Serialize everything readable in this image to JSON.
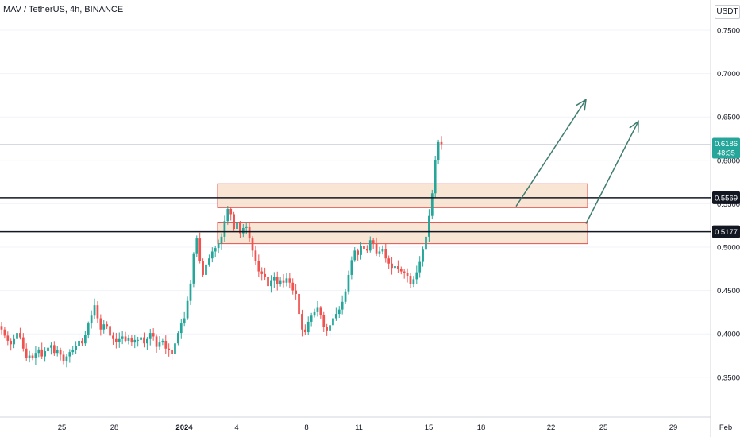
{
  "header": {
    "symbol_line": "MAV / TetherUS, 4h, BINANCE",
    "currency": "USDT"
  },
  "colors": {
    "up": "#26a69a",
    "down": "#ef5350",
    "zone_fill": "#f7dcc6",
    "zone_stroke": "#e0504d",
    "level_line": "#131722",
    "arrow": "#3d7c6f",
    "grid": "#f0f3fa"
  },
  "price_labels": {
    "current": "0.6186",
    "countdown": "48:35",
    "levels": [
      "0.5569",
      "0.5177"
    ]
  },
  "chart_data": {
    "type": "candlestick",
    "title": "MAV / TetherUS, 4h, BINANCE",
    "y_axis": {
      "ticks": [
        "0.7500",
        "0.7000",
        "0.6500",
        "0.6000",
        "0.5500",
        "0.5000",
        "0.4500",
        "0.4000",
        "0.3500"
      ],
      "range": [
        0.3,
        0.77
      ]
    },
    "x_axis": {
      "ticks": [
        "25",
        "28",
        "2024",
        "4",
        "8",
        "11",
        "15",
        "18",
        "22",
        "25",
        "29",
        "Feb"
      ],
      "start_date": "2023-12-22"
    },
    "horizontal_levels": [
      0.5569,
      0.5177
    ],
    "zones": [
      {
        "from_date": "2024-01-03",
        "to_date": "2024-01-24",
        "low": 0.5455,
        "high": 0.573
      },
      {
        "from_date": "2024-01-03",
        "to_date": "2024-01-24",
        "low": 0.504,
        "high": 0.528
      }
    ],
    "arrows": [
      {
        "from_date": "2024-01-20",
        "from_price": 0.547,
        "to_date": "2024-01-24",
        "to_price": 0.67
      },
      {
        "from_date": "2024-01-24",
        "from_price": 0.527,
        "to_date": "2024-01-27",
        "to_price": 0.645
      }
    ],
    "closes": [
      0.405,
      0.398,
      0.392,
      0.388,
      0.394,
      0.401,
      0.396,
      0.383,
      0.372,
      0.375,
      0.372,
      0.378,
      0.382,
      0.374,
      0.38,
      0.384,
      0.387,
      0.378,
      0.381,
      0.376,
      0.369,
      0.374,
      0.379,
      0.381,
      0.386,
      0.392,
      0.389,
      0.399,
      0.412,
      0.421,
      0.433,
      0.418,
      0.405,
      0.411,
      0.409,
      0.398,
      0.394,
      0.391,
      0.394,
      0.397,
      0.392,
      0.395,
      0.39,
      0.393,
      0.393,
      0.396,
      0.389,
      0.394,
      0.401,
      0.397,
      0.385,
      0.39,
      0.392,
      0.383,
      0.381,
      0.377,
      0.389,
      0.401,
      0.412,
      0.418,
      0.438,
      0.458,
      0.492,
      0.51,
      0.484,
      0.468,
      0.48,
      0.487,
      0.495,
      0.499,
      0.504,
      0.512,
      0.53,
      0.544,
      0.538,
      0.521,
      0.528,
      0.516,
      0.522,
      0.523,
      0.51,
      0.496,
      0.484,
      0.472,
      0.469,
      0.466,
      0.455,
      0.461,
      0.466,
      0.457,
      0.461,
      0.459,
      0.464,
      0.459,
      0.45,
      0.446,
      0.423,
      0.405,
      0.402,
      0.414,
      0.421,
      0.425,
      0.43,
      0.422,
      0.408,
      0.404,
      0.41,
      0.418,
      0.423,
      0.428,
      0.437,
      0.449,
      0.468,
      0.485,
      0.496,
      0.491,
      0.501,
      0.498,
      0.496,
      0.508,
      0.504,
      0.492,
      0.495,
      0.498,
      0.487,
      0.481,
      0.476,
      0.478,
      0.475,
      0.472,
      0.47,
      0.467,
      0.457,
      0.463,
      0.471,
      0.483,
      0.497,
      0.512,
      0.536,
      0.562,
      0.6,
      0.621,
      0.6186
    ]
  }
}
